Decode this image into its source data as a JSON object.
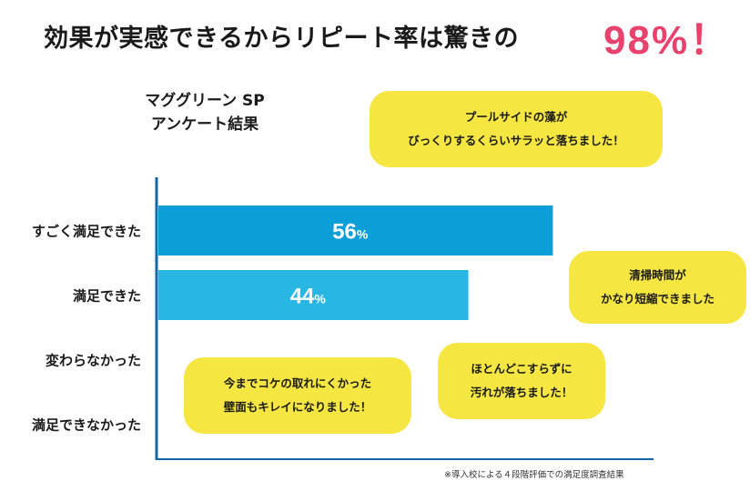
{
  "headline": {
    "text": "効果が実感できるからリピート率は驚きの",
    "highlight": "98%！",
    "highlight_color": "#e8436e"
  },
  "survey_title": {
    "line1": "マググリーン SP",
    "line2": "アンケート結果"
  },
  "chart_data": {
    "type": "bar",
    "orientation": "horizontal",
    "categories": [
      "すごく満足できた",
      "満足できた",
      "変わらなかった",
      "満足できなかった"
    ],
    "values": [
      56,
      44,
      0,
      0
    ],
    "value_labels": [
      "56",
      "44",
      "",
      ""
    ],
    "unit": "%",
    "bar_colors": [
      "#0b9ed7",
      "#28b7e2",
      "#28b7e2",
      "#28b7e2"
    ],
    "xlim": [
      0,
      100
    ],
    "grid": false
  },
  "bubbles": [
    {
      "line1": "プールサイドの藻が",
      "line2": "びっくりするくらいサラッと落ちました！"
    },
    {
      "line1": "清掃時間が",
      "line2": "かなり短縮できました"
    },
    {
      "line1": "ほとんどこすらずに",
      "line2": "汚れが落ちました！"
    },
    {
      "line1": "今までコケの取れにくかった",
      "line2": "壁面もキレイになりました！"
    }
  ],
  "bubble_color": "#f5e642",
  "footnote": "※導入校による４段階評価での満足度調査結果"
}
